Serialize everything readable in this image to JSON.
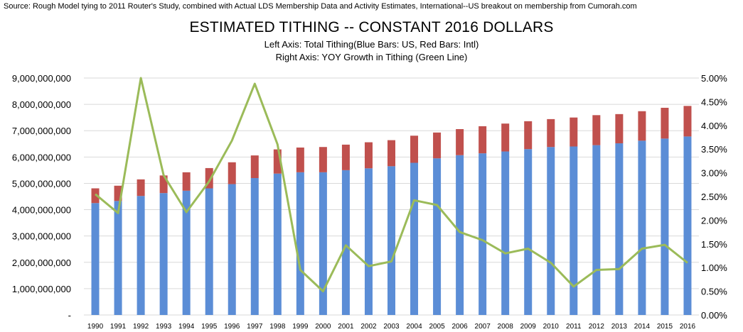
{
  "chart_data": {
    "type": "bar",
    "source_note": "Source: Rough Model tying to 2011 Router's Study, combined with Actual LDS Membership Data and Activity Estimates, International--US breakout on membership from Cumorah.com",
    "title": "ESTIMATED TITHING -- CONSTANT 2016 DOLLARS",
    "subtitle_1": "Left Axis: Total Tithing(Blue Bars: US, Red Bars: Intl)",
    "subtitle_2": "Right Axis: YOY Growth in Tithing (Green Line)",
    "stacked": true,
    "categories": [
      "1990",
      "1991",
      "1992",
      "1993",
      "1994",
      "1995",
      "1996",
      "1997",
      "1998",
      "1999",
      "2000",
      "2001",
      "2002",
      "2003",
      "2004",
      "2005",
      "2006",
      "2007",
      "2008",
      "2009",
      "2010",
      "2011",
      "2012",
      "2013",
      "2014",
      "2015",
      "2016"
    ],
    "series": [
      {
        "axis": "left",
        "type": "bar",
        "color": "#5B8DD6",
        "values": [
          4250000000,
          4330000000,
          4520000000,
          4630000000,
          4720000000,
          4810000000,
          4970000000,
          5200000000,
          5370000000,
          5420000000,
          5420000000,
          5500000000,
          5570000000,
          5650000000,
          5780000000,
          5950000000,
          6070000000,
          6140000000,
          6210000000,
          6300000000,
          6380000000,
          6400000000,
          6450000000,
          6520000000,
          6620000000,
          6700000000,
          6780000000
        ]
      },
      {
        "axis": "left",
        "type": "bar",
        "color": "#C0504D",
        "values": [
          560000000,
          580000000,
          630000000,
          670000000,
          700000000,
          770000000,
          830000000,
          860000000,
          920000000,
          940000000,
          960000000,
          970000000,
          990000000,
          990000000,
          1030000000,
          980000000,
          990000000,
          1030000000,
          1060000000,
          1060000000,
          1060000000,
          1100000000,
          1140000000,
          1110000000,
          1120000000,
          1170000000,
          1160000000
        ]
      },
      {
        "axis": "right",
        "type": "line",
        "color": "#9BBB59",
        "values": [
          2.55,
          2.15,
          5.0,
          2.95,
          2.17,
          2.82,
          3.68,
          4.88,
          3.6,
          0.95,
          0.5,
          1.47,
          1.03,
          1.13,
          2.42,
          2.32,
          1.75,
          1.58,
          1.3,
          1.4,
          1.1,
          0.6,
          0.95,
          0.97,
          1.4,
          1.48,
          1.1
        ]
      }
    ],
    "y_left": {
      "ylim": [
        0,
        9000000000
      ],
      "ticks": [
        0,
        1000000000,
        2000000000,
        3000000000,
        4000000000,
        5000000000,
        6000000000,
        7000000000,
        8000000000,
        9000000000
      ],
      "tick_labels": [
        "-",
        "1,000,000,000",
        "2,000,000,000",
        "3,000,000,000",
        "4,000,000,000",
        "5,000,000,000",
        "6,000,000,000",
        "7,000,000,000",
        "8,000,000,000",
        "9,000,000,000"
      ]
    },
    "y_right": {
      "ylim": [
        0,
        5.0
      ],
      "ticks": [
        0,
        0.5,
        1.0,
        1.5,
        2.0,
        2.5,
        3.0,
        3.5,
        4.0,
        4.5,
        5.0
      ],
      "tick_labels": [
        "0.00%",
        "0.50%",
        "1.00%",
        "1.50%",
        "2.00%",
        "2.50%",
        "3.00%",
        "3.50%",
        "4.00%",
        "4.50%",
        "5.00%"
      ]
    },
    "grid": true,
    "legend": "none"
  }
}
